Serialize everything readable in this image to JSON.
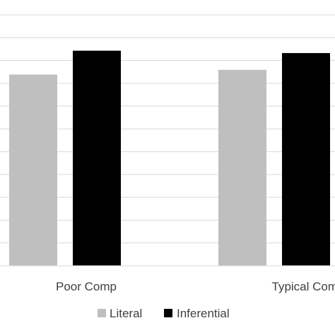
{
  "chart_data": {
    "type": "bar",
    "title": "",
    "xlabel": "",
    "ylabel": "",
    "categories": [
      "Poor Comp",
      "Typical Comp"
    ],
    "series": [
      {
        "name": "Literal",
        "values": [
          8.0,
          8.2
        ],
        "color": "#bfbfbf"
      },
      {
        "name": "Inferential",
        "values": [
          9.0,
          8.9
        ],
        "color": "#000000"
      }
    ],
    "ylim": [
      0,
      10.5
    ],
    "grid": true,
    "gridline_count": 11,
    "gridline_color": "#d9d9d9",
    "axis_color": "#d9d9d9",
    "legend": {
      "position": "bottom",
      "items": [
        "Literal",
        "Inferential"
      ]
    }
  }
}
